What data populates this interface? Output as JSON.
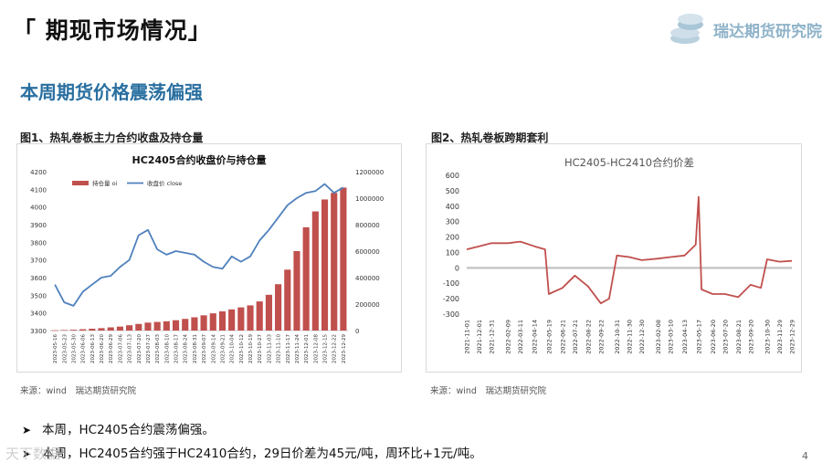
{
  "header": {
    "title": "「 期现市场情况」",
    "logo_text": "瑞达期货研究院"
  },
  "section_title": "本周期货价格震荡偏强",
  "figures": [
    {
      "caption": "图1、热轧卷板主力合约收盘及持仓量",
      "source": "来源：wind　瑞达期货研究院"
    },
    {
      "caption": "图2、热轧卷板跨期套利",
      "source": "来源：wind　瑞达期货研究院"
    }
  ],
  "bullets": [
    "本周，HC2405合约震荡偏强。",
    "本周，HC2405合约强于HC2410合约，29日价差为45元/吨，周环比+1元/吨。"
  ],
  "watermark": "天下数据",
  "page_number": "4",
  "colors": {
    "bars": "#c0504d",
    "line": "#4f81bd",
    "spread": "#c0504d",
    "zero": "#c8c8c8",
    "section": "#2a6fa0"
  },
  "chart_data": [
    {
      "type": "bar+line",
      "title": "HC2405合约收盘价与持仓量",
      "legend": [
        "持仓量 oi",
        "收盘价 close"
      ],
      "legend_position": "top-left",
      "left_axis": {
        "ylim": [
          3300,
          4200
        ],
        "ticks": [
          "4200",
          "4100",
          "4000",
          "3900",
          "3800",
          "3700",
          "3600",
          "3500",
          "3400",
          "3300"
        ]
      },
      "right_axis": {
        "ylim": [
          0,
          1200000
        ],
        "ticks": [
          "1200000",
          "1000000",
          "800000",
          "600000",
          "400000",
          "200000",
          "0"
        ]
      },
      "x_ticks": [
        "2023-05-16",
        "2023-05-23",
        "2023-05-30",
        "2023-06-06",
        "2023-06-13",
        "2023-06-20",
        "2023-06-29",
        "2023-07-06",
        "2023-07-13",
        "2023-07-20",
        "2023-07-27",
        "2023-08-03",
        "2023-08-10",
        "2023-08-17",
        "2023-08-24",
        "2023-08-31",
        "2023-09-07",
        "2023-09-14",
        "2023-09-21",
        "2023-10-04",
        "2023-10-12",
        "2023-10-19",
        "2023-10-27",
        "2023-11-03",
        "2023-11-10",
        "2023-11-17",
        "2023-11-24",
        "2023-12-01",
        "2023-12-08",
        "2023-12-15",
        "2023-12-22",
        "2023-12-29"
      ],
      "series": [
        {
          "name": "持仓量 oi",
          "kind": "bar",
          "x": [
            "2023-05-16",
            "2023-05-23",
            "2023-05-30",
            "2023-06-06",
            "2023-06-13",
            "2023-06-20",
            "2023-06-29",
            "2023-07-06",
            "2023-07-13",
            "2023-07-20",
            "2023-07-27",
            "2023-08-03",
            "2023-08-10",
            "2023-08-17",
            "2023-08-24",
            "2023-08-31",
            "2023-09-07",
            "2023-09-14",
            "2023-09-21",
            "2023-10-04",
            "2023-10-12",
            "2023-10-19",
            "2023-10-27",
            "2023-11-03",
            "2023-11-10",
            "2023-11-17",
            "2023-11-24",
            "2023-12-01",
            "2023-12-08",
            "2023-12-15",
            "2023-12-22",
            "2023-12-29"
          ],
          "values": [
            2000,
            4000,
            6000,
            10000,
            14000,
            18000,
            24000,
            30000,
            40000,
            50000,
            60000,
            65000,
            70000,
            78000,
            88000,
            100000,
            115000,
            130000,
            145000,
            160000,
            175000,
            190000,
            220000,
            270000,
            350000,
            460000,
            600000,
            780000,
            900000,
            990000,
            1040000,
            1080000
          ]
        },
        {
          "name": "收盘价 close",
          "kind": "line",
          "x": [
            "2023-05-16",
            "2023-05-23",
            "2023-05-30",
            "2023-06-06",
            "2023-06-13",
            "2023-06-20",
            "2023-06-29",
            "2023-07-06",
            "2023-07-13",
            "2023-07-20",
            "2023-07-27",
            "2023-08-03",
            "2023-08-10",
            "2023-08-17",
            "2023-08-24",
            "2023-08-31",
            "2023-09-07",
            "2023-09-14",
            "2023-09-21",
            "2023-10-04",
            "2023-10-12",
            "2023-10-19",
            "2023-10-27",
            "2023-11-03",
            "2023-11-10",
            "2023-11-17",
            "2023-11-24",
            "2023-12-01",
            "2023-12-08",
            "2023-12-15",
            "2023-12-22",
            "2023-12-29"
          ],
          "values": [
            3560,
            3460,
            3440,
            3520,
            3560,
            3600,
            3610,
            3660,
            3700,
            3840,
            3870,
            3760,
            3730,
            3750,
            3740,
            3730,
            3690,
            3660,
            3650,
            3720,
            3690,
            3720,
            3810,
            3870,
            3940,
            4010,
            4050,
            4080,
            4090,
            4130,
            4080,
            4110
          ]
        }
      ]
    },
    {
      "type": "line",
      "title": "HC2405-HC2410合约价差",
      "ylim": [
        -300,
        600
      ],
      "y_ticks": [
        "600",
        "500",
        "400",
        "300",
        "200",
        "100",
        "0",
        "-100",
        "-200",
        "-300"
      ],
      "x_ticks": [
        "2021-11-01",
        "2021-12-01",
        "2021-12-31",
        "2022-02-09",
        "2022-03-11",
        "2022-04-14",
        "2022-05-19",
        "2022-06-21",
        "2022-07-21",
        "2022-08-22",
        "2022-09-22",
        "2022-10-31",
        "2022-11-30",
        "2022-12-30",
        "2023-02-08",
        "2023-03-10",
        "2023-04-13",
        "2023-05-17",
        "2023-06-20",
        "2023-07-20",
        "2023-08-21",
        "2023-09-20",
        "2023-10-30",
        "2023-11-29",
        "2023-12-29"
      ],
      "series": [
        {
          "name": "HC2405-HC2410",
          "kind": "line",
          "x": [
            "2021-11-01",
            "2021-12-01",
            "2021-12-31",
            "2022-02-09",
            "2022-03-11",
            "2022-04-14",
            "2022-05-10",
            "2022-05-19",
            "2022-06-21",
            "2022-07-21",
            "2022-08-22",
            "2022-09-22",
            "2022-10-12",
            "2022-10-31",
            "2022-11-30",
            "2022-12-30",
            "2023-02-08",
            "2023-03-10",
            "2023-04-13",
            "2023-05-10",
            "2023-05-17",
            "2023-05-24",
            "2023-06-20",
            "2023-07-20",
            "2023-08-21",
            "2023-09-20",
            "2023-10-15",
            "2023-10-30",
            "2023-11-29",
            "2023-12-29"
          ],
          "values": [
            120,
            140,
            160,
            160,
            170,
            140,
            120,
            -170,
            -130,
            -50,
            -120,
            -230,
            -200,
            80,
            70,
            50,
            60,
            70,
            80,
            150,
            460,
            -140,
            -170,
            -170,
            -190,
            -110,
            -130,
            55,
            40,
            45
          ]
        }
      ]
    }
  ]
}
